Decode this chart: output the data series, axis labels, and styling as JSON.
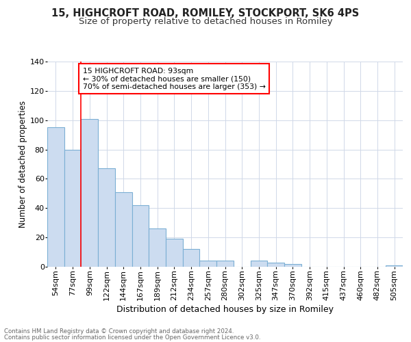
{
  "title1": "15, HIGHCROFT ROAD, ROMILEY, STOCKPORT, SK6 4PS",
  "title2": "Size of property relative to detached houses in Romiley",
  "xlabel": "Distribution of detached houses by size in Romiley",
  "ylabel": "Number of detached properties",
  "categories": [
    "54sqm",
    "77sqm",
    "99sqm",
    "122sqm",
    "144sqm",
    "167sqm",
    "189sqm",
    "212sqm",
    "234sqm",
    "257sqm",
    "280sqm",
    "302sqm",
    "325sqm",
    "347sqm",
    "370sqm",
    "392sqm",
    "415sqm",
    "437sqm",
    "460sqm",
    "482sqm",
    "505sqm"
  ],
  "values": [
    95,
    80,
    101,
    67,
    51,
    42,
    26,
    19,
    12,
    4,
    4,
    0,
    4,
    3,
    2,
    0,
    0,
    0,
    0,
    0,
    1
  ],
  "bar_color": "#ccdcf0",
  "bar_edge_color": "#7bafd4",
  "annotation_text": "15 HIGHCROFT ROAD: 93sqm\n← 30% of detached houses are smaller (150)\n70% of semi-detached houses are larger (353) →",
  "annotation_box_color": "white",
  "annotation_box_edge_color": "red",
  "vline_color": "red",
  "footer1": "Contains HM Land Registry data © Crown copyright and database right 2024.",
  "footer2": "Contains public sector information licensed under the Open Government Licence v3.0.",
  "ylim": [
    0,
    140
  ],
  "yticks": [
    0,
    20,
    40,
    60,
    80,
    100,
    120,
    140
  ],
  "bg_color": "#ffffff",
  "plot_bg_color": "#ffffff",
  "grid_color": "#d0d8e8",
  "title1_fontsize": 10.5,
  "title2_fontsize": 9.5,
  "xlabel_fontsize": 9,
  "ylabel_fontsize": 8.5,
  "tick_fontsize": 8
}
